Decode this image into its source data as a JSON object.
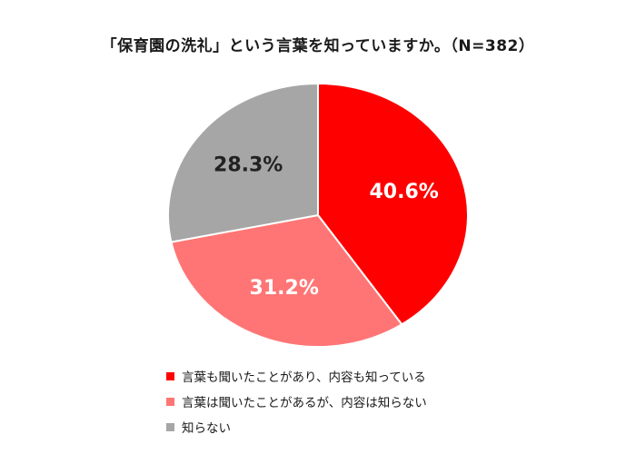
{
  "chart_data": {
    "type": "pie",
    "title": "「保育園の洗礼」という言葉を知っていますか。（N=382）",
    "slices": [
      {
        "label": "言葉も聞いたことがあり、内容も知っている",
        "value": 40.6,
        "value_label": "40.6%",
        "color": "#ff0000"
      },
      {
        "label": "言葉は聞いたことがあるが、内容は知らない",
        "value": 31.2,
        "value_label": "31.2%",
        "color": "#ff7575"
      },
      {
        "label": "知らない",
        "value": 28.3,
        "value_label": "28.3%",
        "color": "#a6a6a6"
      }
    ],
    "start_angle": "12 o'clock",
    "direction": "clockwise",
    "legend_position": "bottom"
  }
}
